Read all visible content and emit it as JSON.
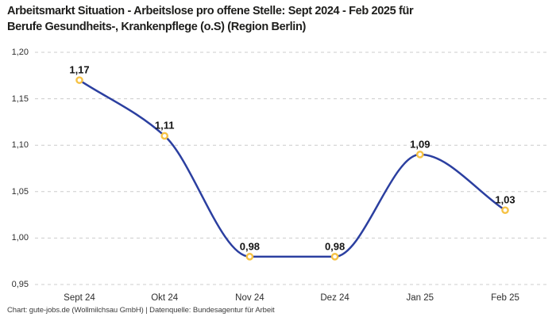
{
  "title_lines": [
    "Arbeitsmarkt Situation - Arbeitslose pro offene Stelle: Sept 2024 - Feb 2025 für",
    "Berufe Gesundheits-, Krankenpflege (o.S) (Region Berlin)"
  ],
  "footer": "Chart: gute-jobs.de (Wollmilchsau GmbH) | Datenquelle: Bundesagentur für Arbeit",
  "chart_data": {
    "type": "line",
    "curve": "monotone-spline",
    "categories": [
      "Sept 24",
      "Okt 24",
      "Nov 24",
      "Dez 24",
      "Jan 25",
      "Feb 25"
    ],
    "values": [
      1.17,
      1.11,
      0.98,
      0.98,
      1.09,
      1.03
    ],
    "value_labels": [
      "1,17",
      "1,11",
      "0,98",
      "0,98",
      "1,09",
      "1,03"
    ],
    "y_ticks": [
      "1,20",
      "1,15",
      "1,10",
      "1,05",
      "1,00",
      "0,95"
    ],
    "y_tick_values": [
      1.2,
      1.15,
      1.1,
      1.05,
      1.0,
      0.95
    ],
    "ylim": [
      0.95,
      1.2
    ],
    "grid": "horizontal-dashed",
    "legend": "none",
    "colors": {
      "line": "#2b3fa0",
      "marker_ring": "#f6c244",
      "marker_fill": "#ffffff",
      "gridline": "#cccccc",
      "tick_text": "#2e2e2e",
      "title_text": "#1d1d1b",
      "footer_text": "#3c3c3c"
    }
  }
}
